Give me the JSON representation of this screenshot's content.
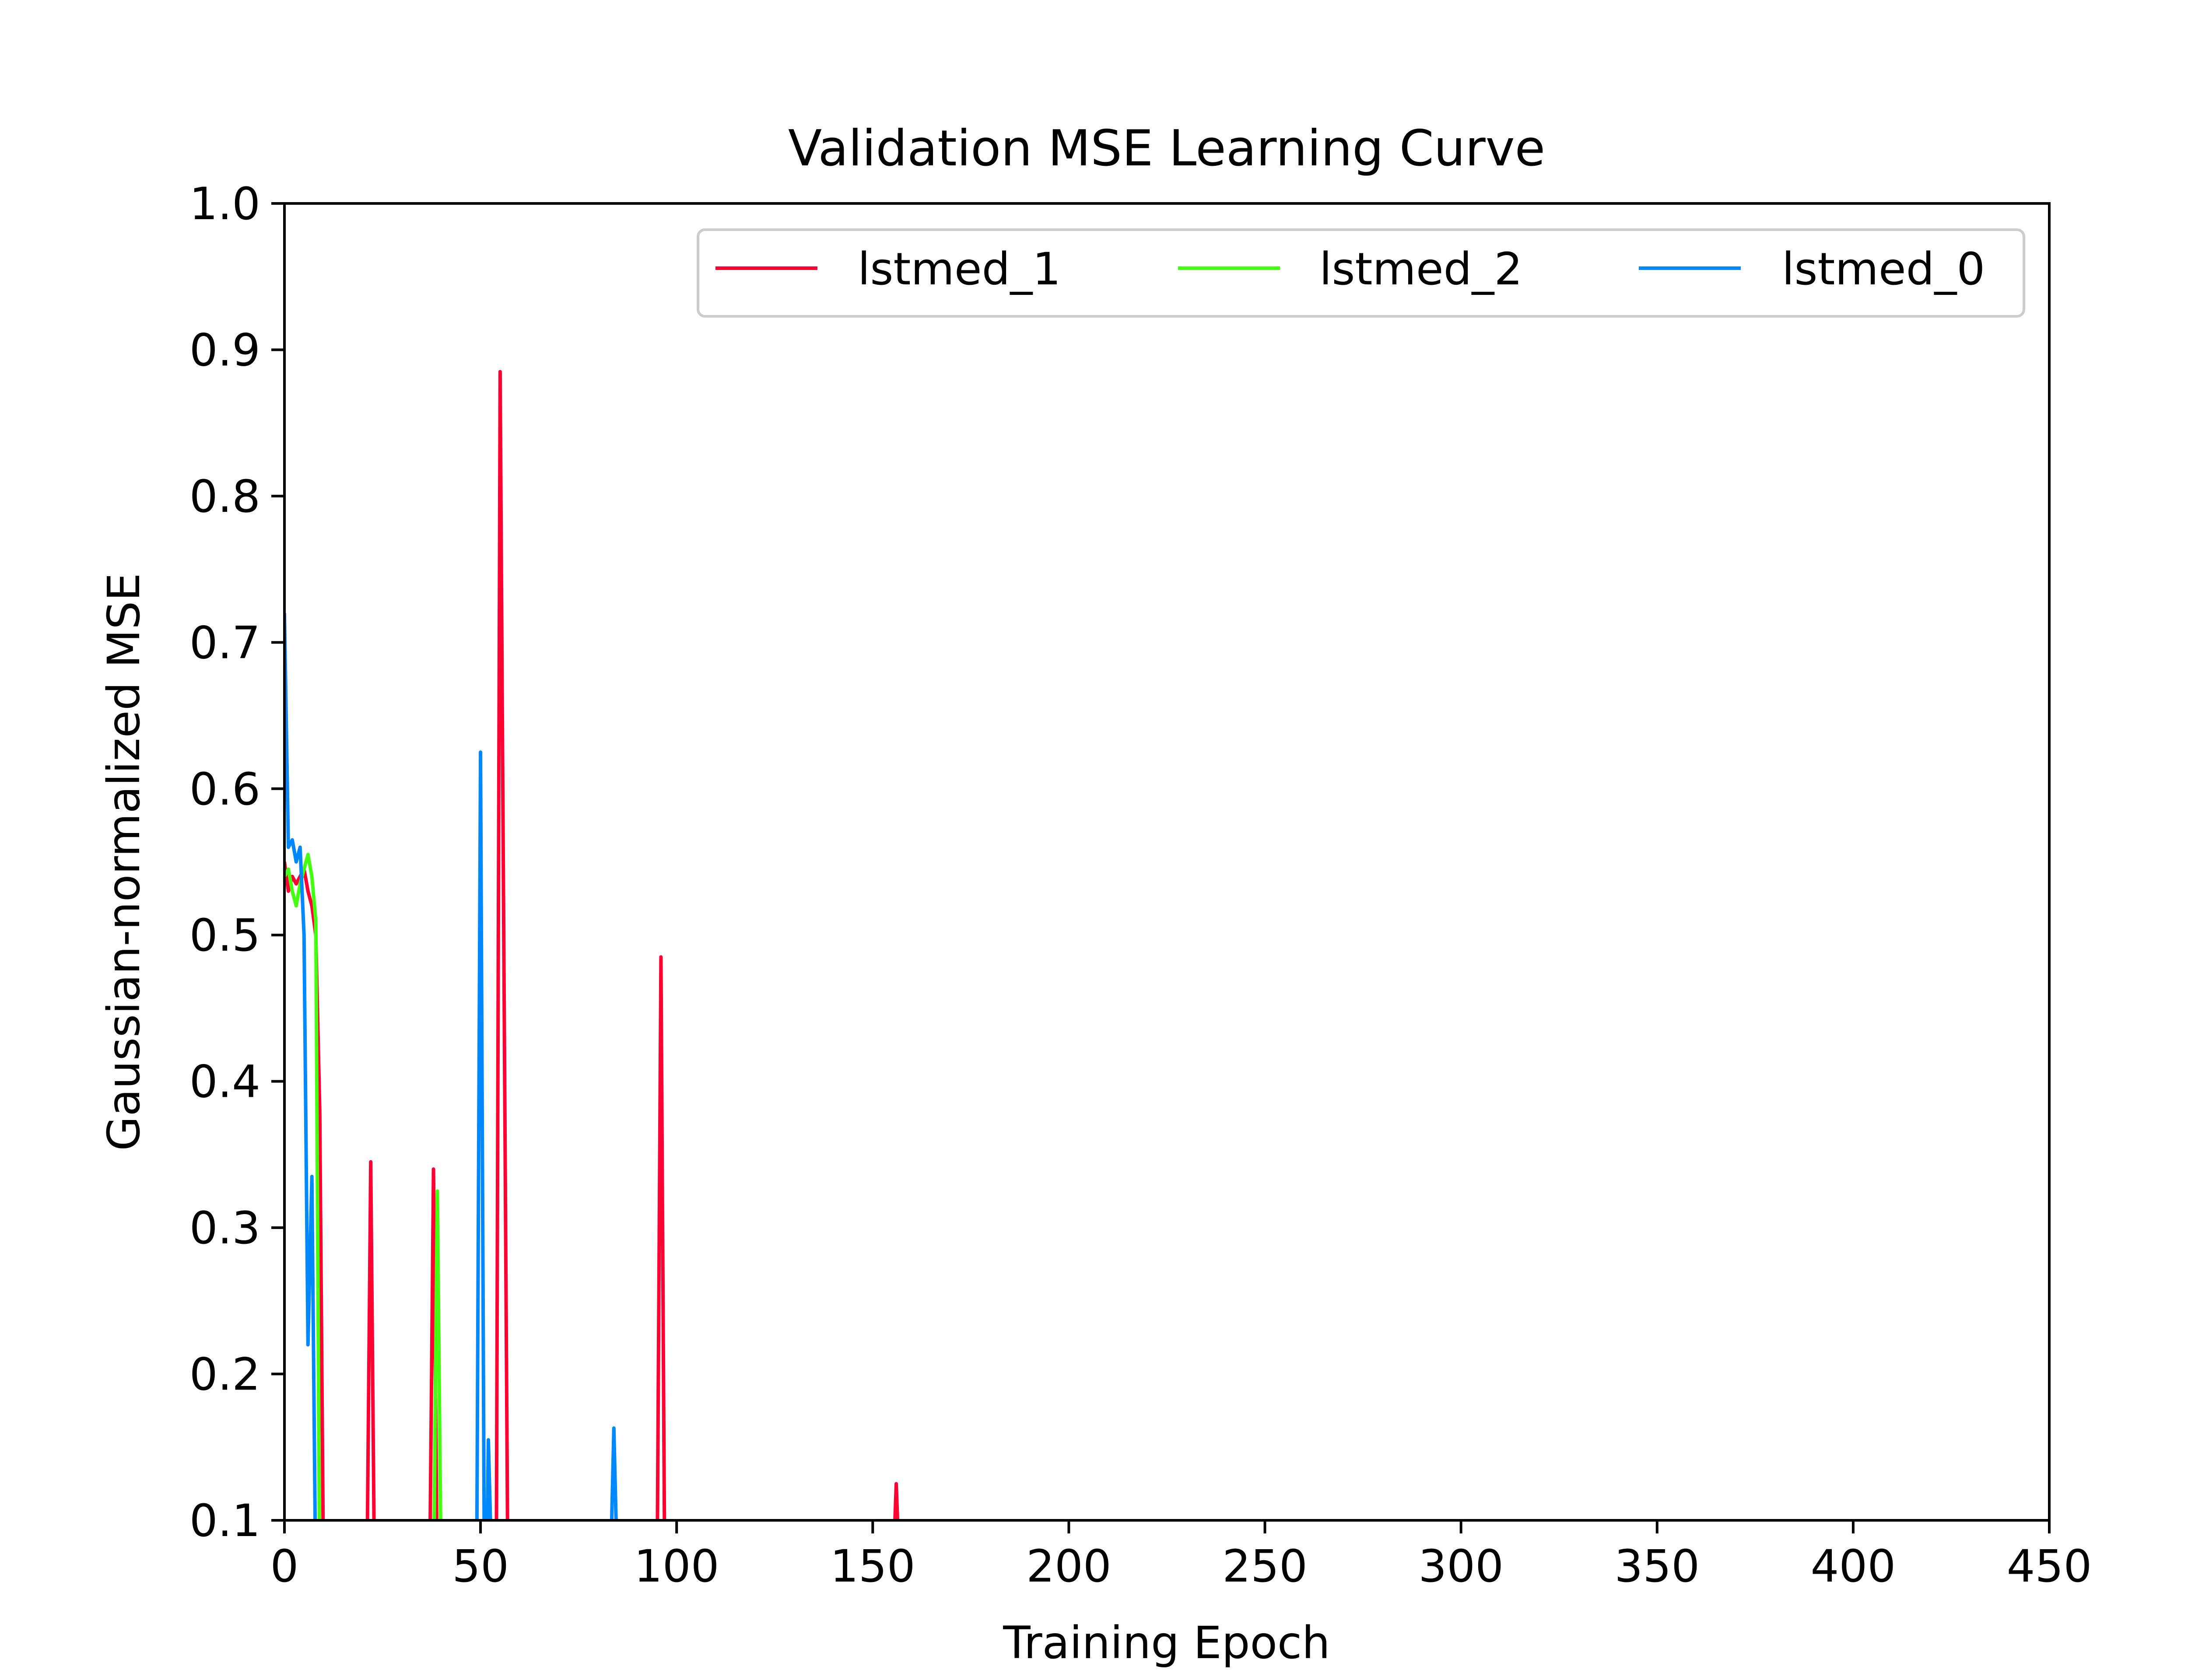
{
  "chart_data": {
    "type": "line",
    "title": "Validation MSE Learning Curve",
    "xlabel": "Training Epoch",
    "ylabel": "Gaussian-normalized MSE",
    "xlim": [
      0,
      450
    ],
    "ylim": [
      0.1,
      1.0
    ],
    "xticks": [
      0,
      50,
      100,
      150,
      200,
      250,
      300,
      350,
      400,
      450
    ],
    "yticks": [
      0.1,
      0.2,
      0.3,
      0.4,
      0.5,
      0.6,
      0.7,
      0.8,
      0.9,
      1.0
    ],
    "xtick_labels": [
      "0",
      "50",
      "100",
      "150",
      "200",
      "250",
      "300",
      "350",
      "400",
      "450"
    ],
    "ytick_labels": [
      "0.1",
      "0.2",
      "0.3",
      "0.4",
      "0.5",
      "0.6",
      "0.7",
      "0.8",
      "0.9",
      "1.0"
    ],
    "grid": false,
    "legend_position": "top-right",
    "series": [
      {
        "name": "lstmed_1",
        "color": "#ff0033",
        "points": [
          [
            0,
            0.55
          ],
          [
            1,
            0.53
          ],
          [
            2,
            0.54
          ],
          [
            3,
            0.535
          ],
          [
            4,
            0.54
          ],
          [
            5,
            0.545
          ],
          [
            6,
            0.53
          ],
          [
            7,
            0.52
          ],
          [
            8,
            0.5
          ],
          [
            9,
            0.38
          ],
          [
            10,
            0.05
          ],
          [
            21,
            0.05
          ],
          [
            22,
            0.345
          ],
          [
            23,
            0.05
          ],
          [
            37,
            0.05
          ],
          [
            38,
            0.34
          ],
          [
            39,
            0.05
          ],
          [
            54,
            0.05
          ],
          [
            55,
            0.885
          ],
          [
            57,
            0.05
          ],
          [
            95,
            0.05
          ],
          [
            96,
            0.485
          ],
          [
            97,
            0.05
          ],
          [
            155,
            0.05
          ],
          [
            156,
            0.125
          ],
          [
            157,
            0.05
          ]
        ]
      },
      {
        "name": "lstmed_2",
        "color": "#44ff11",
        "points": [
          [
            0,
            0.54
          ],
          [
            1,
            0.545
          ],
          [
            2,
            0.53
          ],
          [
            3,
            0.52
          ],
          [
            4,
            0.535
          ],
          [
            5,
            0.545
          ],
          [
            6,
            0.555
          ],
          [
            7,
            0.54
          ],
          [
            8,
            0.51
          ],
          [
            9,
            0.05
          ],
          [
            38,
            0.05
          ],
          [
            39,
            0.325
          ],
          [
            40,
            0.05
          ]
        ]
      },
      {
        "name": "lstmed_0",
        "color": "#0088ff",
        "points": [
          [
            0,
            0.72
          ],
          [
            1,
            0.56
          ],
          [
            2,
            0.565
          ],
          [
            3,
            0.55
          ],
          [
            4,
            0.56
          ],
          [
            5,
            0.5
          ],
          [
            6,
            0.22
          ],
          [
            7,
            0.335
          ],
          [
            8,
            0.05
          ],
          [
            49,
            0.05
          ],
          [
            50,
            0.625
          ],
          [
            51,
            0.05
          ],
          [
            51.5,
            0.05
          ],
          [
            52,
            0.155
          ],
          [
            53,
            0.05
          ],
          [
            83,
            0.05
          ],
          [
            84,
            0.163
          ],
          [
            85,
            0.05
          ]
        ]
      }
    ]
  }
}
